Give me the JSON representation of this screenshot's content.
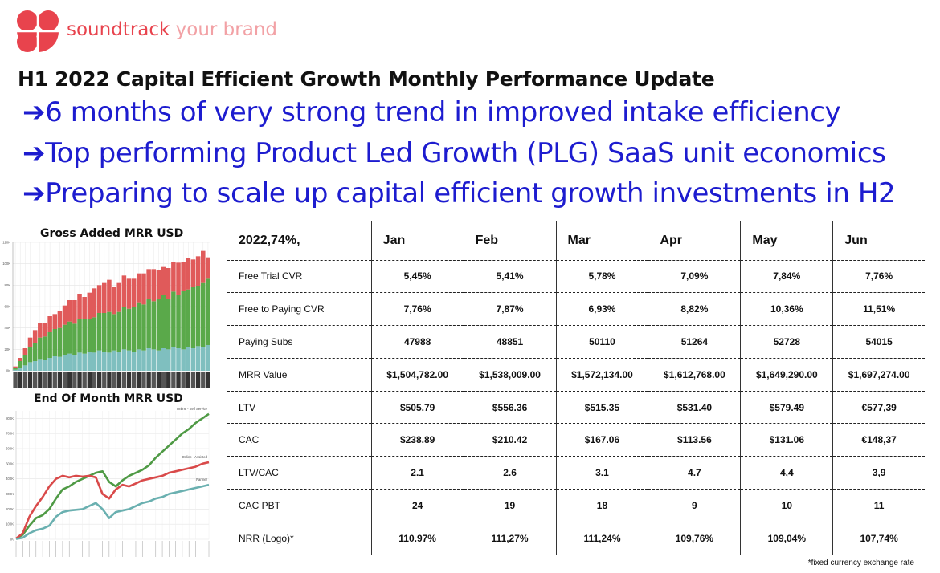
{
  "brand": {
    "name": "soundtrack",
    "tagline": " your brand",
    "logo_icon": "soundtrack-flower-logo",
    "colors": {
      "primary": "#e8434d",
      "light": "#f2a1a5"
    }
  },
  "headline": "H1 2022 Capital Efficient Growth Monthly Performance Update",
  "bullets": [
    {
      "arrow": "➔",
      "text": "6 months of very strong trend in improved intake efficiency"
    },
    {
      "arrow": "➔",
      "text": "Top performing Product Led Growth (PLG) SaaS unit economics"
    },
    {
      "arrow": "➔",
      "text": "Preparing to scale up capital efficient growth investments in H2"
    }
  ],
  "table": {
    "corner": "2022,74%,",
    "columns": [
      "Jan",
      "Feb",
      "Mar",
      "Apr",
      "May",
      "Jun"
    ],
    "rows": [
      {
        "label": "Free Trial CVR",
        "values": [
          "5,45%",
          "5,41%",
          "5,78%",
          "7,09%",
          "7,84%",
          "7,76%"
        ]
      },
      {
        "label": "Free to Paying CVR",
        "values": [
          "7,76%",
          "7,87%",
          "6,93%",
          "8,82%",
          "10,36%",
          "11,51%"
        ]
      },
      {
        "label": "Paying Subs",
        "values": [
          "47988",
          "48851",
          "50110",
          "51264",
          "52728",
          "54015"
        ]
      },
      {
        "label": "MRR Value",
        "values": [
          "$1,504,782.00",
          "$1,538,009.00",
          "$1,572,134.00",
          "$1,612,768.00",
          "$1,649,290.00",
          "$1,697,274.00"
        ]
      },
      {
        "label": "LTV",
        "values": [
          "$505.79",
          "$556.36",
          "$515.35",
          "$531.40",
          "$579.49",
          "€577,39"
        ]
      },
      {
        "label": "CAC",
        "values": [
          "$238.89",
          "$210.42",
          "$167.06",
          "$113.56",
          "$131.06",
          "€148,37"
        ]
      },
      {
        "label": "LTV/CAC",
        "values": [
          "2.1",
          "2.6",
          "3.1",
          "4.7",
          "4,4",
          "3,9"
        ]
      },
      {
        "label": "CAC PBT",
        "values": [
          "24",
          "19",
          "18",
          "9",
          "10",
          "11"
        ]
      },
      {
        "label": "NRR (Logo)*",
        "values": [
          "110.97%",
          "111,27%",
          "111,24%",
          "109,76%",
          "109,04%",
          "107,74%"
        ]
      }
    ]
  },
  "footnote": "*fixed currency exchange rate",
  "chart_data": [
    {
      "type": "bar",
      "stacked": true,
      "title": "Gross Added MRR USD",
      "xlabel": "",
      "ylabel": "",
      "ylim": [
        0,
        120000
      ],
      "yticks": [
        "0K",
        "20K",
        "40K",
        "60K",
        "80K",
        "100K",
        "120K"
      ],
      "ytick_values": [
        0,
        20000,
        40000,
        60000,
        80000,
        100000,
        120000
      ],
      "grid": true,
      "series": [
        {
          "color": "#7fbfbf",
          "values": [
            1000,
            3000,
            5000,
            8000,
            9000,
            11000,
            10000,
            12000,
            14000,
            13000,
            15000,
            16000,
            15000,
            17000,
            16000,
            18000,
            17000,
            19000,
            18000,
            17000,
            19000,
            18000,
            20000,
            19000,
            18000,
            20000,
            19000,
            21000,
            20000,
            19000,
            21000,
            20000,
            22000,
            21000,
            20000,
            22000,
            21000,
            23000,
            22000,
            24000
          ]
        },
        {
          "color": "#5aa94a",
          "values": [
            2000,
            6000,
            10000,
            14000,
            17000,
            20000,
            22000,
            24000,
            25000,
            27000,
            28000,
            30000,
            29000,
            31000,
            32000,
            30000,
            33000,
            35000,
            36000,
            38000,
            34000,
            37000,
            40000,
            39000,
            42000,
            44000,
            43000,
            46000,
            45000,
            48000,
            50000,
            47000,
            52000,
            50000,
            55000,
            54000,
            57000,
            56000,
            60000,
            62000
          ]
        },
        {
          "color": "#e05a5a",
          "values": [
            1000,
            3000,
            6000,
            9000,
            12000,
            14000,
            13000,
            15000,
            14000,
            16000,
            18000,
            20000,
            22000,
            24000,
            21000,
            25000,
            27000,
            26000,
            28000,
            30000,
            25000,
            27000,
            29000,
            28000,
            26000,
            27000,
            29000,
            28000,
            30000,
            27000,
            26000,
            29000,
            28000,
            30000,
            27000,
            29000,
            26000,
            28000,
            30000,
            20000
          ]
        }
      ]
    },
    {
      "type": "line",
      "title": "End Of Month MRR USD",
      "xlabel": "",
      "ylabel": "",
      "ylim": [
        0,
        850000
      ],
      "yticks": [
        "0K",
        "100K",
        "200K",
        "300K",
        "400K",
        "500K",
        "600K",
        "700K",
        "800K"
      ],
      "ytick_values": [
        0,
        100000,
        200000,
        300000,
        400000,
        500000,
        600000,
        700000,
        800000
      ],
      "grid": true,
      "series": [
        {
          "name": "Online - Self Service",
          "color": "#4f9a45",
          "values": [
            5000,
            30000,
            90000,
            140000,
            160000,
            200000,
            270000,
            330000,
            350000,
            380000,
            400000,
            420000,
            440000,
            450000,
            380000,
            350000,
            390000,
            420000,
            440000,
            460000,
            490000,
            540000,
            580000,
            620000,
            660000,
            700000,
            730000,
            770000,
            800000,
            830000
          ]
        },
        {
          "name": "Online - Assisted",
          "color": "#d94a4a",
          "values": [
            5000,
            40000,
            150000,
            220000,
            280000,
            350000,
            400000,
            420000,
            410000,
            420000,
            415000,
            420000,
            410000,
            300000,
            270000,
            330000,
            360000,
            350000,
            370000,
            390000,
            400000,
            410000,
            420000,
            440000,
            450000,
            460000,
            470000,
            480000,
            500000,
            510000
          ]
        },
        {
          "name": "Partner",
          "color": "#6ab0b0",
          "values": [
            2000,
            10000,
            40000,
            60000,
            70000,
            90000,
            150000,
            180000,
            190000,
            195000,
            200000,
            220000,
            240000,
            200000,
            140000,
            180000,
            190000,
            200000,
            220000,
            240000,
            250000,
            270000,
            280000,
            300000,
            310000,
            320000,
            330000,
            340000,
            350000,
            360000
          ]
        }
      ]
    }
  ]
}
